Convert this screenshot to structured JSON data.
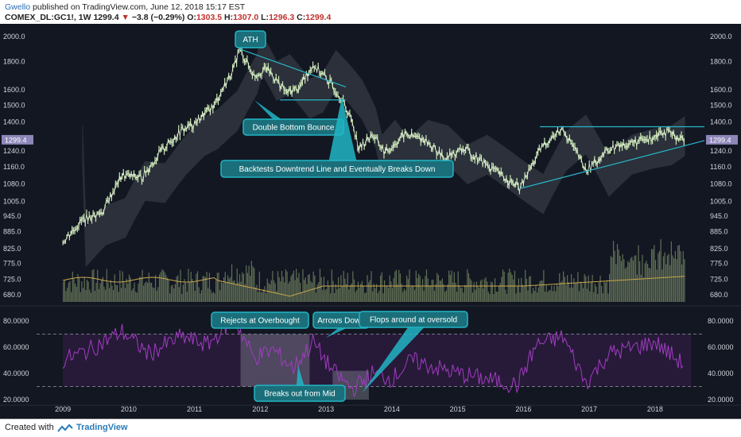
{
  "header": {
    "author": "Gwello",
    "published": "published on TradingView.com, June 12, 2018 15:17 EST",
    "symbol": "COMEX_DL:GC1!, 1W",
    "last": "1299.4",
    "change": "−3.8 (−0.29%)",
    "o_label": "O:",
    "o": "1303.5",
    "h_label": "H:",
    "h": "1307.0",
    "l_label": "L:",
    "l": "1296.3",
    "c_label": "C:",
    "c": "1299.4"
  },
  "footer": {
    "created_with": "Created with",
    "brand": "TradingView"
  },
  "colors": {
    "background": "#131722",
    "price": "#c8e6b4",
    "cloud": "#9aa0a8",
    "volume": "#6e7f5e",
    "volume_ma": "#c9a84a",
    "rsi_line": "#a03cc0",
    "rsi_fill": "#2a1b3c",
    "annotation": "#21b5c4",
    "text_axis": "#d0d3d8",
    "trend_line": "#29b6c9"
  },
  "chart_data": {
    "type": "line",
    "price_axis_ticks": [
      "2000.0",
      "1800.0",
      "1600.0",
      "1500.0",
      "1400.0",
      "1240.0",
      "1160.0",
      "1080.0",
      "1005.0",
      "945.0",
      "885.0",
      "825.0",
      "775.0",
      "725.0",
      "680.0"
    ],
    "current_price_label": "1299.4",
    "rsi_axis_ticks": [
      "80.0000",
      "60.0000",
      "40.0000",
      "20.0000"
    ],
    "x_axis_ticks": [
      "2009",
      "2010",
      "2011",
      "2012",
      "2013",
      "2014",
      "2015",
      "2016",
      "2017",
      "2018"
    ],
    "price_series_approx": [
      [
        2009.0,
        850
      ],
      [
        2009.3,
        930
      ],
      [
        2009.6,
        960
      ],
      [
        2009.9,
        1120
      ],
      [
        2010.2,
        1110
      ],
      [
        2010.5,
        1240
      ],
      [
        2010.8,
        1350
      ],
      [
        2011.0,
        1390
      ],
      [
        2011.3,
        1500
      ],
      [
        2011.6,
        1750
      ],
      [
        2011.68,
        1900
      ],
      [
        2011.9,
        1700
      ],
      [
        2012.1,
        1750
      ],
      [
        2012.4,
        1580
      ],
      [
        2012.6,
        1620
      ],
      [
        2012.8,
        1780
      ],
      [
        2013.0,
        1680
      ],
      [
        2013.2,
        1570
      ],
      [
        2013.4,
        1400
      ],
      [
        2013.5,
        1250
      ],
      [
        2013.7,
        1330
      ],
      [
        2013.9,
        1230
      ],
      [
        2014.2,
        1330
      ],
      [
        2014.5,
        1300
      ],
      [
        2014.8,
        1200
      ],
      [
        2015.1,
        1250
      ],
      [
        2015.4,
        1180
      ],
      [
        2015.7,
        1110
      ],
      [
        2015.95,
        1060
      ],
      [
        2016.3,
        1270
      ],
      [
        2016.6,
        1360
      ],
      [
        2016.95,
        1140
      ],
      [
        2017.3,
        1250
      ],
      [
        2017.6,
        1280
      ],
      [
        2017.9,
        1300
      ],
      [
        2018.1,
        1350
      ],
      [
        2018.45,
        1299.4
      ]
    ],
    "rsi_series_approx": [
      [
        2009.0,
        50
      ],
      [
        2009.4,
        58
      ],
      [
        2009.9,
        72
      ],
      [
        2010.3,
        55
      ],
      [
        2010.8,
        68
      ],
      [
        2011.2,
        62
      ],
      [
        2011.6,
        82
      ],
      [
        2011.9,
        52
      ],
      [
        2012.2,
        58
      ],
      [
        2012.5,
        44
      ],
      [
        2012.8,
        64
      ],
      [
        2013.1,
        42
      ],
      [
        2013.4,
        28
      ],
      [
        2013.7,
        40
      ],
      [
        2014.0,
        36
      ],
      [
        2014.3,
        50
      ],
      [
        2014.7,
        44
      ],
      [
        2015.0,
        40
      ],
      [
        2015.4,
        36
      ],
      [
        2015.9,
        31
      ],
      [
        2016.2,
        62
      ],
      [
        2016.6,
        68
      ],
      [
        2016.95,
        33
      ],
      [
        2017.3,
        55
      ],
      [
        2017.7,
        60
      ],
      [
        2018.0,
        64
      ],
      [
        2018.45,
        46
      ]
    ],
    "rsi_levels": [
      70,
      30
    ],
    "annotations": [
      "ATH",
      "Double Bottom Bounce",
      "Backtests Downtrend Line and Eventually Breaks Down",
      "Rejects at Overbought",
      "Arrows Down",
      "Flops around at oversold",
      "Breaks out from Mid"
    ]
  }
}
